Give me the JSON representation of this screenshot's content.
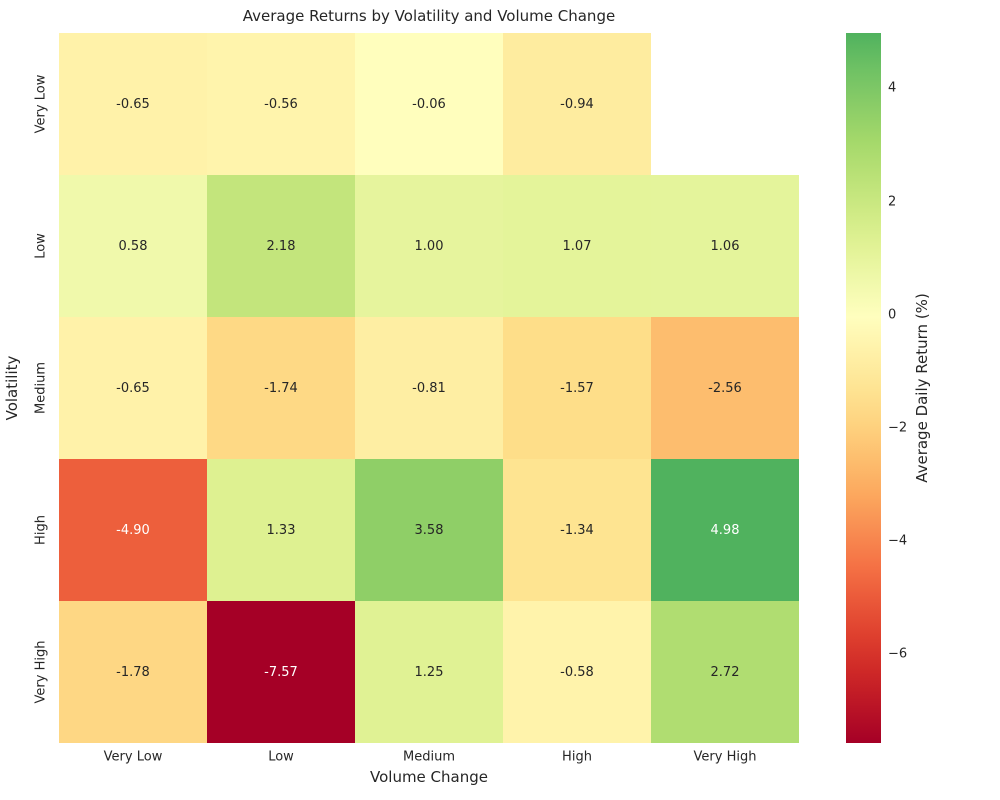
{
  "chart_data": {
    "type": "heatmap",
    "title": "Average Returns by Volatility and Volume Change",
    "xlabel": "Volume Change",
    "ylabel": "Volatility",
    "x_categories": [
      "Very Low",
      "Low",
      "Medium",
      "High",
      "Very High"
    ],
    "y_categories": [
      "Very Low",
      "Low",
      "Medium",
      "High",
      "Very High"
    ],
    "values": [
      [
        -0.65,
        -0.56,
        -0.06,
        -0.94,
        null
      ],
      [
        0.58,
        2.18,
        1.0,
        1.07,
        1.06
      ],
      [
        -0.65,
        -1.74,
        -0.81,
        -1.57,
        -2.56
      ],
      [
        -4.9,
        1.33,
        3.58,
        -1.34,
        4.98
      ],
      [
        -1.78,
        -7.57,
        1.25,
        -0.58,
        2.72
      ]
    ],
    "value_format_decimals": 2,
    "grid": false,
    "legend_position": "right-colorbar",
    "colorbar": {
      "label": "Average Daily Return (%)",
      "tick_labels": [
        "4",
        "2",
        "0",
        "−2",
        "−4",
        "−6"
      ],
      "tick_values": [
        4,
        2,
        0,
        -2,
        -4,
        -6
      ],
      "vmin": -7.57,
      "vmax": 4.98,
      "center": 0
    },
    "colormap": {
      "name": "RdYlGn",
      "anchors": [
        "#a50026",
        "#d73027",
        "#f46d43",
        "#fdae61",
        "#fee08b",
        "#ffffbf",
        "#d9ef8b",
        "#a6d96a",
        "#66bd63",
        "#1a9850",
        "#006837"
      ]
    },
    "annotation_text_colors": {
      "dark": "#262626",
      "light": "#ffffff"
    },
    "missing_cell_color": "#ffffff"
  }
}
